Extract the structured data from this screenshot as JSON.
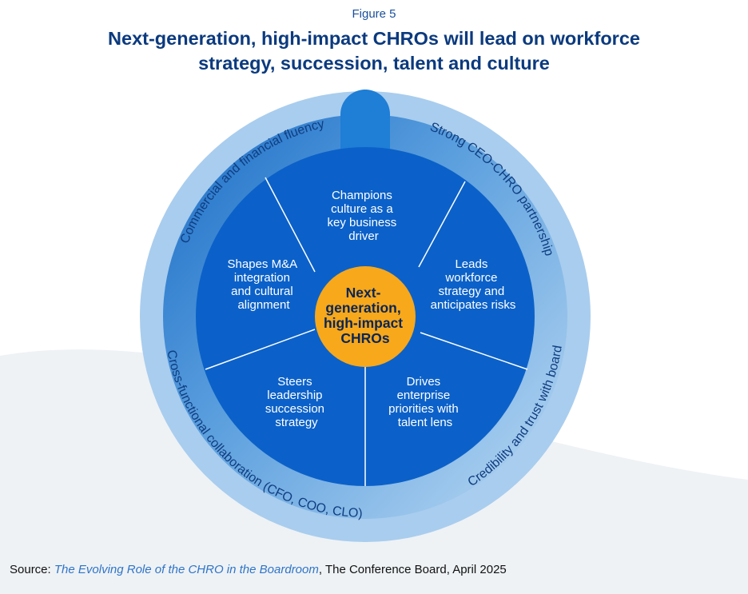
{
  "figure_label": "Figure 5",
  "title_lines": [
    "Next-generation, high-impact CHROs will lead on workforce",
    "strategy, succession, talent and culture"
  ],
  "center": {
    "lines": [
      "Next-",
      "generation,",
      "high-impact",
      "CHROs"
    ]
  },
  "segments": [
    {
      "lines": [
        "Champions",
        "culture as a",
        "key business",
        "driver"
      ]
    },
    {
      "lines": [
        "Leads",
        "workforce",
        "strategy and",
        "anticipates risks"
      ]
    },
    {
      "lines": [
        "Drives",
        "enterprise",
        "priorities with",
        "talent lens"
      ]
    },
    {
      "lines": [
        "Steers",
        "leadership",
        "succession",
        "strategy"
      ]
    },
    {
      "lines": [
        "Shapes M&A",
        "integration",
        "and cultural",
        "alignment"
      ]
    }
  ],
  "ring_labels": {
    "commercial": "Commercial and financial fluency",
    "ceo_partnership": "Strong CEO-CHRO partnership",
    "credibility": "Credibility and trust with board",
    "cross_functional": "Cross-functional collaboration (CFO, COO, CLO)"
  },
  "source": {
    "prefix": "Source: ",
    "link_text": "The Evolving Role of the CHRO in the Boardroom",
    "suffix": ", The Conference Board, April 2025"
  },
  "colors": {
    "inner_circle": "#0b61c9",
    "hub": "#f7a81b",
    "ring_light": "#8fbde6",
    "ring_dark": "#1b6fca",
    "background_shape": "#eef2f5"
  }
}
